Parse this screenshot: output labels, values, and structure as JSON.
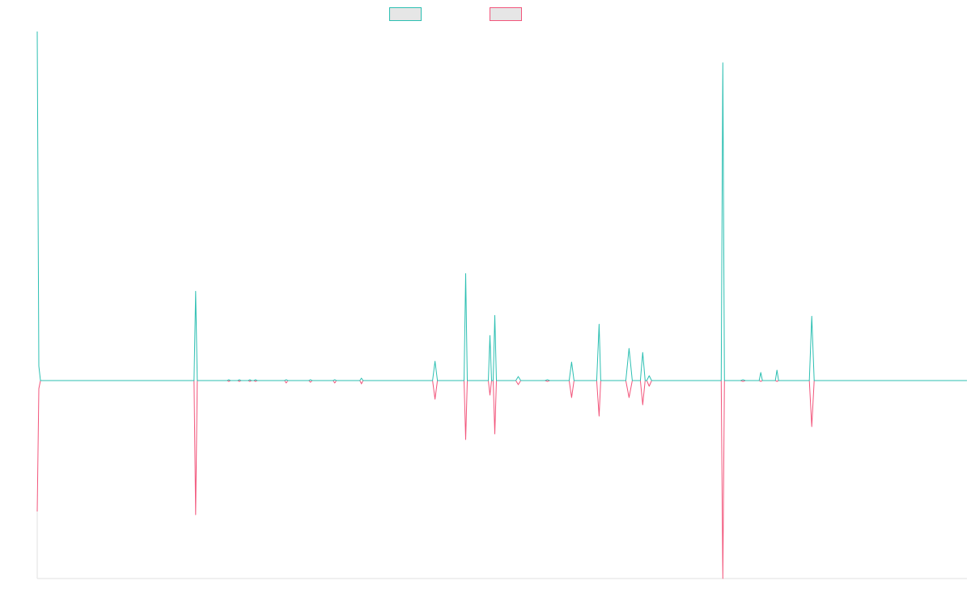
{
  "chart_data": {
    "type": "line",
    "title": "",
    "xlabel": "",
    "ylabel": "",
    "grid": false,
    "legend_position": "top-center",
    "x_range": [
      0,
      1150
    ],
    "y_range": [
      -245,
      435
    ],
    "baseline": 0,
    "series": [
      {
        "color": "#2cbfb2",
        "legend_fill": "#e6e6e6",
        "points": [
          [
            0,
            434
          ],
          [
            2,
            18
          ],
          [
            4,
            0
          ],
          [
            194,
            0
          ],
          [
            196,
            111
          ],
          [
            198,
            0
          ],
          [
            235,
            0
          ],
          [
            237,
            1
          ],
          [
            239,
            0
          ],
          [
            248,
            0
          ],
          [
            250,
            1
          ],
          [
            252,
            0
          ],
          [
            261,
            0
          ],
          [
            263,
            1
          ],
          [
            265,
            0
          ],
          [
            268,
            0
          ],
          [
            270,
            1
          ],
          [
            272,
            0
          ],
          [
            306,
            0
          ],
          [
            308,
            1
          ],
          [
            310,
            0
          ],
          [
            336,
            0
          ],
          [
            338,
            1
          ],
          [
            340,
            0
          ],
          [
            366,
            0
          ],
          [
            368,
            1
          ],
          [
            370,
            0
          ],
          [
            399,
            0
          ],
          [
            401,
            3
          ],
          [
            403,
            0
          ],
          [
            489,
            0
          ],
          [
            492,
            24
          ],
          [
            495,
            0
          ],
          [
            528,
            0
          ],
          [
            530,
            133
          ],
          [
            532,
            0
          ],
          [
            558,
            0
          ],
          [
            560,
            56
          ],
          [
            562,
            0
          ],
          [
            564,
            0
          ],
          [
            566,
            81
          ],
          [
            568,
            0
          ],
          [
            592,
            0
          ],
          [
            595,
            5
          ],
          [
            598,
            0
          ],
          [
            628,
            0
          ],
          [
            631,
            1
          ],
          [
            634,
            0
          ],
          [
            658,
            0
          ],
          [
            661,
            23
          ],
          [
            664,
            0
          ],
          [
            692,
            0
          ],
          [
            695,
            70
          ],
          [
            697,
            0
          ],
          [
            728,
            0
          ],
          [
            732,
            40
          ],
          [
            736,
            0
          ],
          [
            746,
            0
          ],
          [
            749,
            35
          ],
          [
            752,
            0
          ],
          [
            754,
            0
          ],
          [
            757,
            6
          ],
          [
            760,
            0
          ],
          [
            846,
            0
          ],
          [
            848,
            395
          ],
          [
            850,
            0
          ],
          [
            870,
            0
          ],
          [
            873,
            1
          ],
          [
            876,
            0
          ],
          [
            893,
            0
          ],
          [
            895,
            10
          ],
          [
            897,
            0
          ],
          [
            913,
            0
          ],
          [
            915,
            13
          ],
          [
            917,
            0
          ],
          [
            955,
            0
          ],
          [
            958,
            80
          ],
          [
            961,
            0
          ],
          [
            1150,
            0
          ]
        ]
      },
      {
        "color": "#f2557b",
        "legend_fill": "#e6e6e6",
        "points": [
          [
            0,
            -162
          ],
          [
            2,
            -10
          ],
          [
            4,
            0
          ],
          [
            194,
            0
          ],
          [
            196,
            -166
          ],
          [
            198,
            0
          ],
          [
            235,
            0
          ],
          [
            237,
            -1
          ],
          [
            239,
            0
          ],
          [
            248,
            0
          ],
          [
            250,
            -1
          ],
          [
            252,
            0
          ],
          [
            261,
            0
          ],
          [
            263,
            -1
          ],
          [
            265,
            0
          ],
          [
            268,
            0
          ],
          [
            270,
            -1
          ],
          [
            272,
            0
          ],
          [
            306,
            0
          ],
          [
            308,
            -3
          ],
          [
            310,
            0
          ],
          [
            336,
            0
          ],
          [
            338,
            -2
          ],
          [
            340,
            0
          ],
          [
            366,
            0
          ],
          [
            368,
            -3
          ],
          [
            370,
            0
          ],
          [
            399,
            0
          ],
          [
            401,
            -4
          ],
          [
            403,
            0
          ],
          [
            489,
            0
          ],
          [
            492,
            -23
          ],
          [
            495,
            0
          ],
          [
            528,
            0
          ],
          [
            530,
            -73
          ],
          [
            532,
            0
          ],
          [
            558,
            0
          ],
          [
            560,
            -18
          ],
          [
            562,
            0
          ],
          [
            564,
            0
          ],
          [
            566,
            -66
          ],
          [
            568,
            0
          ],
          [
            592,
            0
          ],
          [
            595,
            -5
          ],
          [
            598,
            0
          ],
          [
            628,
            0
          ],
          [
            631,
            -1
          ],
          [
            634,
            0
          ],
          [
            658,
            0
          ],
          [
            661,
            -21
          ],
          [
            664,
            0
          ],
          [
            692,
            0
          ],
          [
            695,
            -44
          ],
          [
            697,
            0
          ],
          [
            728,
            0
          ],
          [
            732,
            -21
          ],
          [
            736,
            0
          ],
          [
            746,
            0
          ],
          [
            749,
            -30
          ],
          [
            752,
            0
          ],
          [
            754,
            0
          ],
          [
            757,
            -7
          ],
          [
            760,
            0
          ],
          [
            846,
            0
          ],
          [
            848,
            -245
          ],
          [
            850,
            0
          ],
          [
            870,
            0
          ],
          [
            873,
            -1
          ],
          [
            876,
            0
          ],
          [
            893,
            0
          ],
          [
            895,
            -1
          ],
          [
            897,
            0
          ],
          [
            913,
            0
          ],
          [
            915,
            -1
          ],
          [
            917,
            0
          ],
          [
            955,
            0
          ],
          [
            958,
            -57
          ],
          [
            961,
            0
          ],
          [
            1150,
            0
          ]
        ]
      }
    ]
  }
}
